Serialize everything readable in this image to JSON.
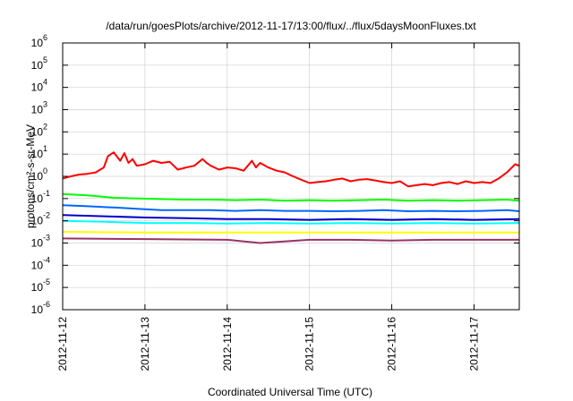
{
  "chart_data": {
    "type": "line",
    "title": "/data/run/goesPlots/archive/2012-11-17/13:00/flux/../flux/5daysMoonFluxes.txt",
    "xlabel": "Coordinated Universal Time (UTC)",
    "ylabel": "protons/cm²-s-sr-MeV",
    "yscale": "log",
    "ylim": [
      1e-06,
      1000000.0
    ],
    "xlim_days": [
      0,
      5.55
    ],
    "x_tick_labels": [
      "2012-11-12",
      "2012-11-13",
      "2012-11-14",
      "2012-11-15",
      "2012-11-16",
      "2012-11-17"
    ],
    "y_tick_labels": [
      {
        "base": "10",
        "exp": "-6"
      },
      {
        "base": "10",
        "exp": "-5"
      },
      {
        "base": "10",
        "exp": "-4"
      },
      {
        "base": "10",
        "exp": "-3"
      },
      {
        "base": "10",
        "exp": "-2"
      },
      {
        "base": "10",
        "exp": "-1"
      },
      {
        "base": "10",
        "exp": "0"
      },
      {
        "base": "10",
        "exp": "1"
      },
      {
        "base": "10",
        "exp": "2"
      },
      {
        "base": "10",
        "exp": "3"
      },
      {
        "base": "10",
        "exp": "4"
      },
      {
        "base": "10",
        "exp": "5"
      },
      {
        "base": "10",
        "exp": "6"
      }
    ],
    "grid": true,
    "legend": "none",
    "series": [
      {
        "color": "#ff0000",
        "x": [
          0,
          0.1,
          0.2,
          0.3,
          0.4,
          0.5,
          0.55,
          0.62,
          0.7,
          0.75,
          0.8,
          0.85,
          0.9,
          1.0,
          1.1,
          1.2,
          1.3,
          1.4,
          1.5,
          1.6,
          1.7,
          1.75,
          1.8,
          1.9,
          2.0,
          2.1,
          2.2,
          2.3,
          2.35,
          2.4,
          2.5,
          2.6,
          2.7,
          2.8,
          2.9,
          3.0,
          3.1,
          3.2,
          3.3,
          3.4,
          3.5,
          3.6,
          3.7,
          3.8,
          3.9,
          4.0,
          4.1,
          4.2,
          4.3,
          4.4,
          4.5,
          4.6,
          4.7,
          4.8,
          4.9,
          5.0,
          5.1,
          5.2,
          5.3,
          5.4,
          5.5,
          5.55
        ],
        "y": [
          0.8,
          1.0,
          1.2,
          1.3,
          1.5,
          2.5,
          8,
          12,
          5,
          11,
          4,
          6,
          3,
          3.5,
          5,
          4,
          4.5,
          2,
          2.5,
          3,
          6,
          4,
          3,
          2,
          2.5,
          2.3,
          1.8,
          5,
          2.5,
          4,
          2.5,
          1.8,
          1.5,
          1.0,
          0.7,
          0.5,
          0.55,
          0.6,
          0.7,
          0.8,
          0.6,
          0.7,
          0.75,
          0.65,
          0.55,
          0.5,
          0.6,
          0.35,
          0.4,
          0.45,
          0.4,
          0.5,
          0.55,
          0.45,
          0.6,
          0.5,
          0.55,
          0.5,
          0.8,
          1.5,
          3.5,
          3.0
        ]
      },
      {
        "color": "#00ff00",
        "x": [
          0,
          0.3,
          0.6,
          0.9,
          1.2,
          1.5,
          1.8,
          2.1,
          2.4,
          2.7,
          3.0,
          3.3,
          3.6,
          3.9,
          4.2,
          4.5,
          4.8,
          5.1,
          5.4,
          5.55
        ],
        "y": [
          0.16,
          0.14,
          0.11,
          0.1,
          0.095,
          0.09,
          0.09,
          0.085,
          0.09,
          0.08,
          0.085,
          0.08,
          0.085,
          0.09,
          0.08,
          0.085,
          0.08,
          0.085,
          0.09,
          0.08
        ]
      },
      {
        "color": "#00ffff",
        "x": [
          0,
          0.5,
          1.0,
          1.5,
          2.0,
          2.5,
          3.0,
          3.5,
          4.0,
          4.5,
          5.0,
          5.55
        ],
        "y": [
          0.01,
          0.009,
          0.008,
          0.008,
          0.0075,
          0.008,
          0.0075,
          0.008,
          0.0075,
          0.008,
          0.0075,
          0.008
        ]
      },
      {
        "color": "#0066ff",
        "x": [
          0,
          0.3,
          0.6,
          0.9,
          1.2,
          1.5,
          1.8,
          2.1,
          2.4,
          2.7,
          3.0,
          3.3,
          3.6,
          3.9,
          4.2,
          4.5,
          4.8,
          5.1,
          5.4,
          5.55
        ],
        "y": [
          0.05,
          0.045,
          0.04,
          0.035,
          0.03,
          0.03,
          0.03,
          0.028,
          0.03,
          0.028,
          0.028,
          0.027,
          0.028,
          0.03,
          0.027,
          0.028,
          0.027,
          0.028,
          0.03,
          0.027
        ]
      },
      {
        "color": "#0000cc",
        "x": [
          0,
          0.5,
          1.0,
          1.5,
          2.0,
          2.5,
          3.0,
          3.5,
          4.0,
          4.5,
          5.0,
          5.55
        ],
        "y": [
          0.018,
          0.016,
          0.014,
          0.013,
          0.012,
          0.012,
          0.011,
          0.012,
          0.011,
          0.012,
          0.011,
          0.012
        ]
      },
      {
        "color": "#ffff00",
        "x": [
          0,
          1.0,
          2.0,
          3.0,
          4.0,
          5.0,
          5.55
        ],
        "y": [
          0.0032,
          0.003,
          0.003,
          0.003,
          0.003,
          0.003,
          0.003
        ]
      },
      {
        "color": "#993366",
        "x": [
          0,
          1.0,
          2.0,
          2.4,
          3.0,
          3.5,
          4.0,
          4.5,
          5.0,
          5.55
        ],
        "y": [
          0.0016,
          0.0015,
          0.0014,
          0.001,
          0.0014,
          0.0014,
          0.0013,
          0.0014,
          0.0014,
          0.0014
        ]
      }
    ]
  }
}
